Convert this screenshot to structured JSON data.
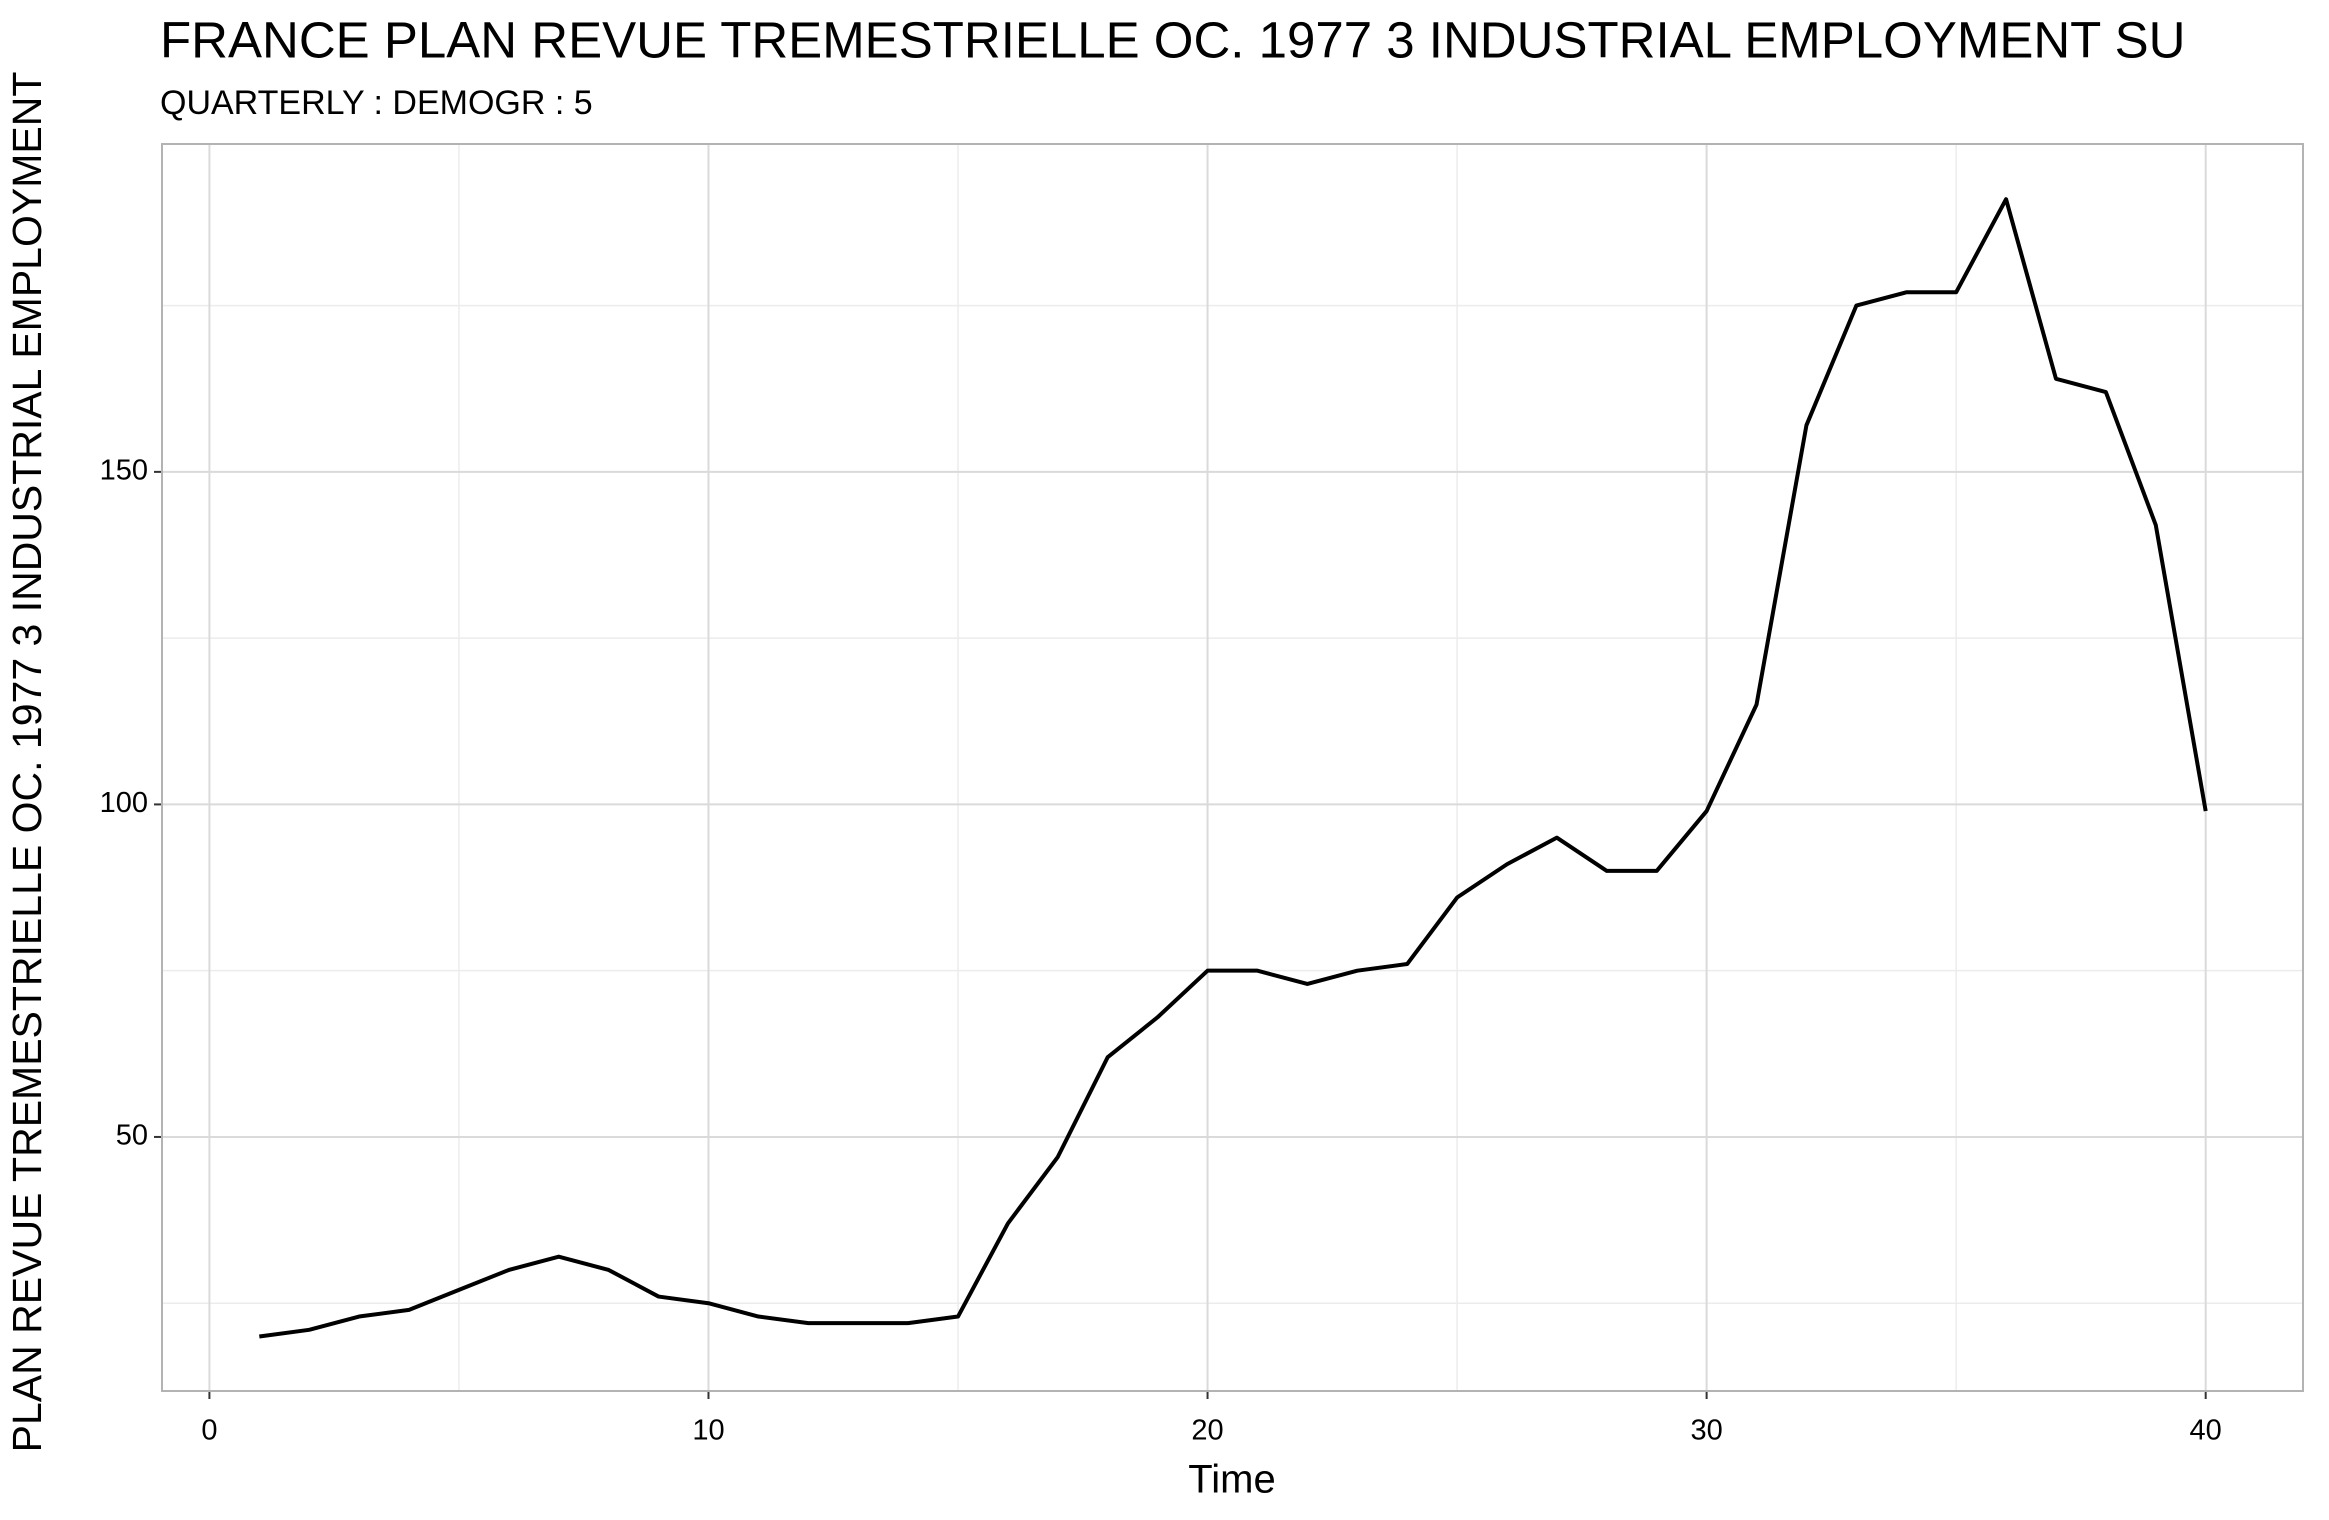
{
  "chart_data": {
    "type": "line",
    "title": "FRANCE PLAN REVUE TREMESTRIELLE OC. 1977 3 INDUSTRIAL EMPLOYMENT SU",
    "subtitle": "QUARTERLY : DEMOGR : 5",
    "x_label": "Time",
    "y_label": "PLAN REVUE TREMESTRIELLE OC. 1977 3 INDUSTRIAL EMPLOYMENT",
    "x": [
      1,
      2,
      3,
      4,
      5,
      6,
      7,
      8,
      9,
      10,
      11,
      12,
      13,
      14,
      15,
      16,
      17,
      18,
      19,
      20,
      21,
      22,
      23,
      24,
      25,
      26,
      27,
      28,
      29,
      30,
      31,
      32,
      33,
      34,
      35,
      36,
      37,
      38,
      39,
      40
    ],
    "series": [
      {
        "color": "#000000",
        "values": [
          20,
          21,
          23,
          24,
          27,
          30,
          32,
          30,
          26,
          25,
          23,
          22,
          22,
          22,
          23,
          37,
          47,
          62,
          68,
          75,
          75,
          73,
          75,
          76,
          86,
          91,
          95,
          90,
          90,
          99,
          115,
          157,
          175,
          177,
          177,
          191,
          164,
          162,
          142,
          99
        ]
      }
    ],
    "xlim": [
      -0.95,
      41.95
    ],
    "xticks": [
      0,
      10,
      20,
      30,
      40
    ],
    "minor_xticks": [
      5,
      15,
      25,
      35
    ],
    "ylim": [
      11.8,
      199.3
    ],
    "yticks": [
      50,
      100,
      150
    ],
    "minor_yticks": [
      25,
      75,
      125,
      175
    ],
    "grid": true
  }
}
